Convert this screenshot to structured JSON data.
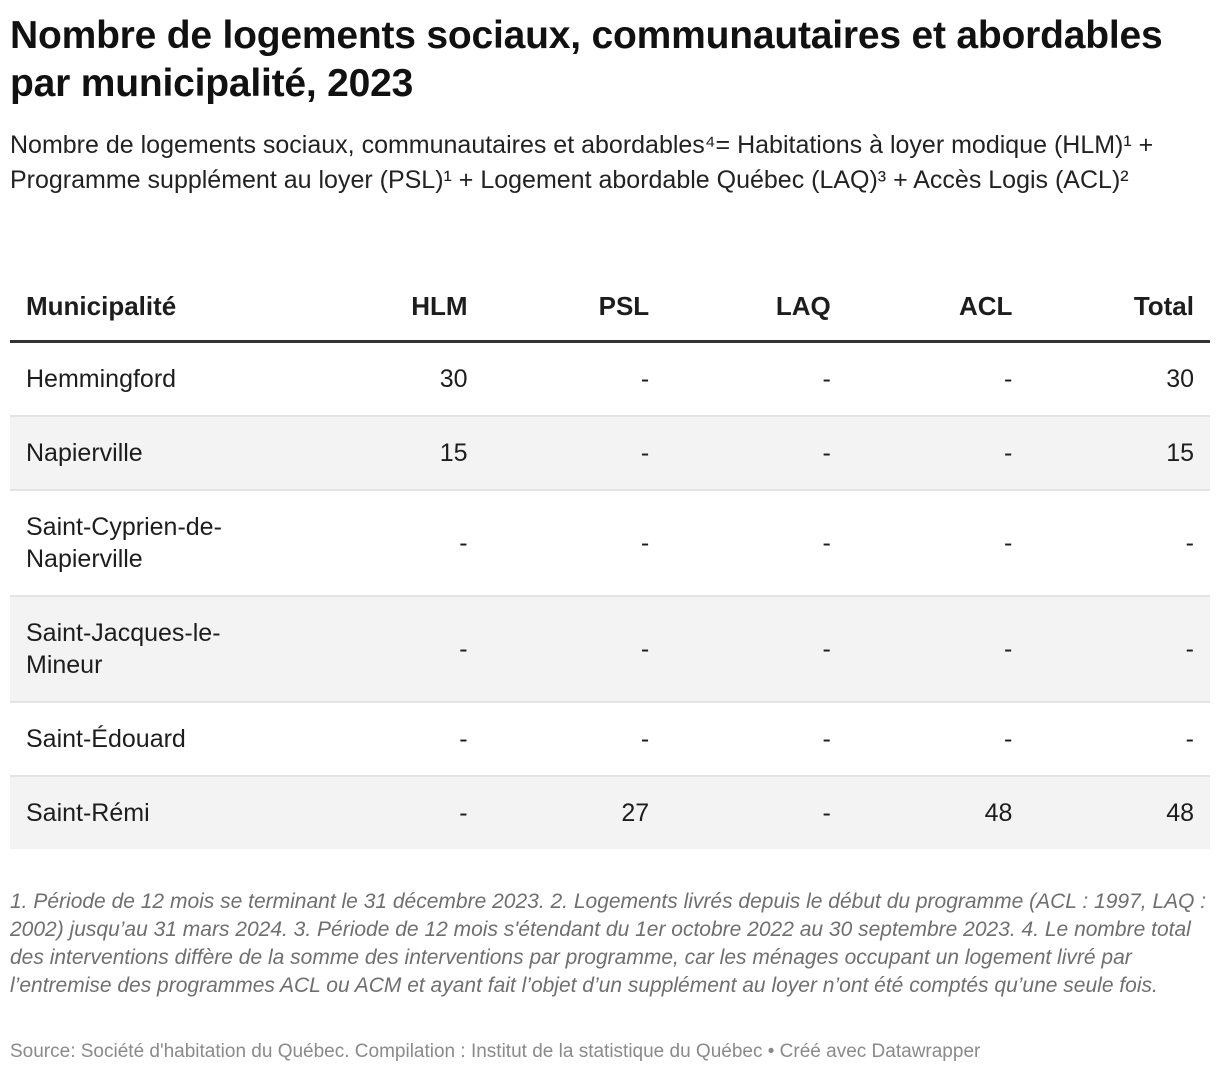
{
  "title": "Nombre de logements sociaux, communautaires et abordables par municipalité, 2023",
  "subtitle": "Nombre de logements sociaux, communautaires et abordables⁴= Habitations à loyer modique (HLM)¹ + Programme supplément au loyer (PSL)¹ + Logement abordable Québec (LAQ)³ + Accès Logis (ACL)²",
  "chart_data": {
    "type": "table",
    "columns": [
      "Municipalité",
      "HLM",
      "PSL",
      "LAQ",
      "ACL",
      "Total"
    ],
    "rows": [
      {
        "municipalite": "Hemmingford",
        "hlm": "30",
        "psl": "-",
        "laq": "-",
        "acl": "-",
        "total": "30"
      },
      {
        "municipalite": "Napierville",
        "hlm": "15",
        "psl": "-",
        "laq": "-",
        "acl": "-",
        "total": "15"
      },
      {
        "municipalite": "Saint-Cyprien-de-Napierville",
        "hlm": "-",
        "psl": "-",
        "laq": "-",
        "acl": "-",
        "total": "-"
      },
      {
        "municipalite": "Saint-Jacques-le-Mineur",
        "hlm": "-",
        "psl": "-",
        "laq": "-",
        "acl": "-",
        "total": "-"
      },
      {
        "municipalite": "Saint-Édouard",
        "hlm": "-",
        "psl": "-",
        "laq": "-",
        "acl": "-",
        "total": "-"
      },
      {
        "municipalite": "Saint-Rémi",
        "hlm": "-",
        "psl": "27",
        "laq": "-",
        "acl": "48",
        "total": "48"
      }
    ]
  },
  "footnote": "1. Période de 12 mois se terminant le 31 décembre 2023. 2. Logements livrés depuis le début du programme (ACL : 1997, LAQ : 2002) jusqu’au 31 mars 2024. 3. Période de 12 mois s'étendant du 1er octobre 2022 au 30 septembre 2023. 4. Le nombre total des interventions diffère de la somme des interventions par programme, car les ménages occupant un logement livré par l’entremise des programmes ACL ou ACM et ayant fait l’objet d’un supplément au loyer n’ont été comptés qu’une seule fois.",
  "source": "Source: Société d'habitation du Québec. Compilation : Institut de la statistique du Québec • Créé avec Datawrapper"
}
